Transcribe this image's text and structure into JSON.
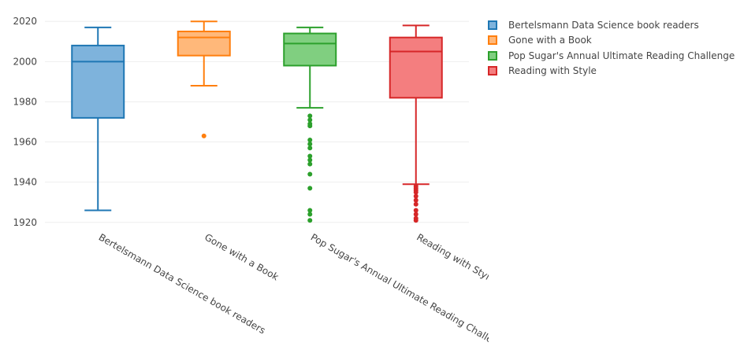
{
  "chart_data": {
    "type": "box",
    "ylim": [
      1916,
      2024
    ],
    "yticks": [
      1920,
      1940,
      1960,
      1980,
      2000,
      2020
    ],
    "grid": true,
    "legend_position": "top-right",
    "categories": [
      "Bertelsmann Data Science book readers",
      "Gone with a Book",
      "Pop Sugar's Annual Ultimate Reading Challenge",
      "Reading with Style"
    ],
    "series": [
      {
        "name": "Bertelsmann Data Science book readers",
        "color": "#1f77b4",
        "fill": "#7eb3dc",
        "min": 1926,
        "q1": 1972,
        "median": 2000,
        "q3": 2008,
        "max": 2017,
        "outliers": []
      },
      {
        "name": "Gone with a Book",
        "color": "#ff7f0e",
        "fill": "#ffb87a",
        "min": 1988,
        "q1": 2003,
        "median": 2012,
        "q3": 2015,
        "max": 2020,
        "outliers": [
          1963
        ]
      },
      {
        "name": "Pop Sugar's Annual Ultimate Reading Challenge",
        "color": "#2ca02c",
        "fill": "#80cf80",
        "min": 1977,
        "q1": 1998,
        "median": 2009,
        "q3": 2014,
        "max": 2017,
        "outliers": [
          1973,
          1971,
          1969,
          1968,
          1961,
          1959,
          1957,
          1953,
          1951,
          1949,
          1944,
          1937,
          1926,
          1924,
          1921
        ]
      },
      {
        "name": "Reading with Style",
        "color": "#d62728",
        "fill": "#f47e7f",
        "min": 1939,
        "q1": 1982,
        "median": 2005,
        "q3": 2012,
        "max": 2018,
        "outliers": [
          1938,
          1937,
          1936,
          1935,
          1933,
          1931,
          1929,
          1926,
          1924,
          1922,
          1921
        ]
      }
    ]
  }
}
